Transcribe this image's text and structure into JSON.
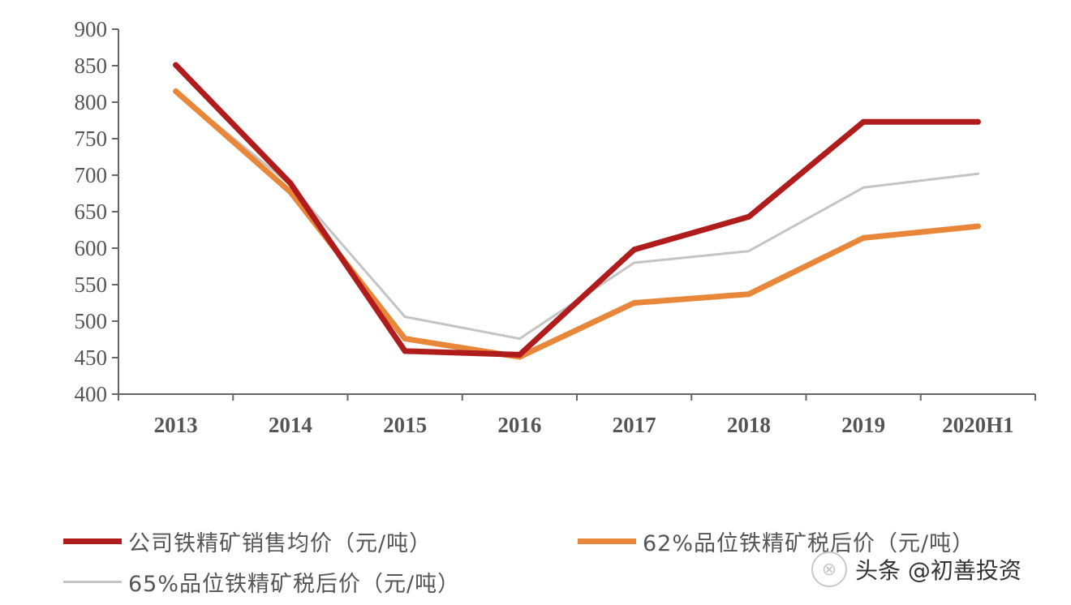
{
  "chart_data": {
    "type": "line",
    "categories": [
      "2013",
      "2014",
      "2015",
      "2016",
      "2017",
      "2018",
      "2019",
      "2020H1"
    ],
    "ylim": [
      400,
      900
    ],
    "yticks": [
      400,
      450,
      500,
      550,
      600,
      650,
      700,
      750,
      800,
      850,
      900
    ],
    "grid": false,
    "legend_position": "bottom",
    "series": [
      {
        "name": "公司铁精矿销售均价（元/吨）",
        "color": "#b01c1c",
        "values": [
          851,
          689,
          459,
          454,
          598,
          643,
          773,
          773
        ]
      },
      {
        "name": "62%品位铁精矿税后价（元/吨）",
        "color": "#e8873a",
        "values": [
          815,
          677,
          476,
          451,
          525,
          537,
          614,
          630
        ]
      },
      {
        "name": "65%品位铁精矿税后价（元/吨）",
        "color": "#c4c4c4",
        "values": [
          815,
          687,
          506,
          476,
          580,
          596,
          683,
          702
        ]
      }
    ]
  },
  "watermark": {
    "text": "头条 @初善投资"
  }
}
